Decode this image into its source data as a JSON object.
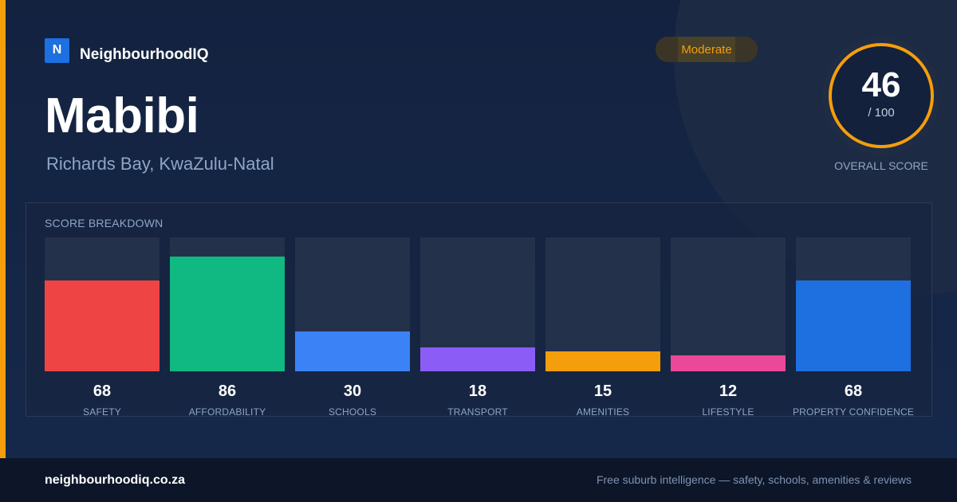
{
  "brand": {
    "logo_letter": "N",
    "name": "NeighbourhoodIQ",
    "accent_color": "#f59e0b",
    "logo_color": "#1e6fe0"
  },
  "suburb": {
    "name": "Mabibi",
    "location": "Richards Bay, KwaZulu-Natal"
  },
  "rating": {
    "badge": "Moderate",
    "badge_color": "#f59e0b"
  },
  "overall": {
    "score": 46,
    "score_text": "46",
    "max_text": "/ 100",
    "caption": "OVERALL SCORE",
    "max": 100
  },
  "breakdown": {
    "title": "SCORE BREAKDOWN",
    "items": [
      {
        "label": "SAFETY",
        "value": 68,
        "value_text": "68",
        "color": "#ef4444"
      },
      {
        "label": "AFFORDABILITY",
        "value": 86,
        "value_text": "86",
        "color": "#10b981"
      },
      {
        "label": "SCHOOLS",
        "value": 30,
        "value_text": "30",
        "color": "#3b82f6"
      },
      {
        "label": "TRANSPORT",
        "value": 18,
        "value_text": "18",
        "color": "#8b5cf6"
      },
      {
        "label": "AMENITIES",
        "value": 15,
        "value_text": "15",
        "color": "#f59e0b"
      },
      {
        "label": "LIFESTYLE",
        "value": 12,
        "value_text": "12",
        "color": "#ec4899"
      },
      {
        "label": "PROPERTY CONFIDENCE",
        "value": 68,
        "value_text": "68",
        "color": "#1e6fe0"
      }
    ]
  },
  "footer": {
    "domain": "neighbourhoodiq.co.za",
    "tagline": "Free suburb intelligence — safety, schools, amenities & reviews"
  }
}
